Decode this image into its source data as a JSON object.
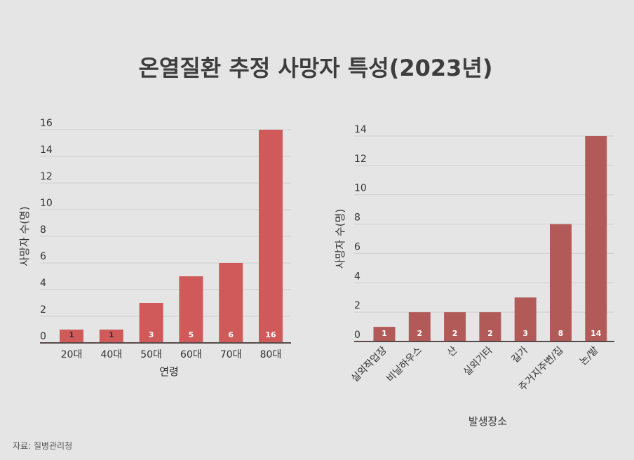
{
  "title": "온열질환 추정 사망자 특성(2023년)",
  "source": "자료: 질병관리청",
  "chart_data": [
    {
      "type": "bar",
      "categories": [
        "20대",
        "40대",
        "50대",
        "60대",
        "70대",
        "80대"
      ],
      "values": [
        1,
        1,
        3,
        5,
        6,
        16
      ],
      "xlabel": "연령",
      "ylabel": "사망자 수(명)",
      "ylim": [
        0,
        16
      ],
      "yticks": [
        0,
        2,
        4,
        6,
        8,
        10,
        12,
        14,
        16
      ],
      "color": "#d05a5a",
      "grid": true
    },
    {
      "type": "bar",
      "categories": [
        "실외작업장",
        "비닐하우스",
        "산",
        "실외기타",
        "길가",
        "주거지주변/집",
        "논/밭"
      ],
      "values": [
        1,
        2,
        2,
        2,
        3,
        8,
        14
      ],
      "xlabel": "발생장소",
      "ylabel": "사망자 수(명)",
      "ylim": [
        0,
        14
      ],
      "yticks": [
        0,
        2,
        4,
        6,
        8,
        10,
        12,
        14
      ],
      "color": "#b25a58",
      "grid": true
    }
  ]
}
